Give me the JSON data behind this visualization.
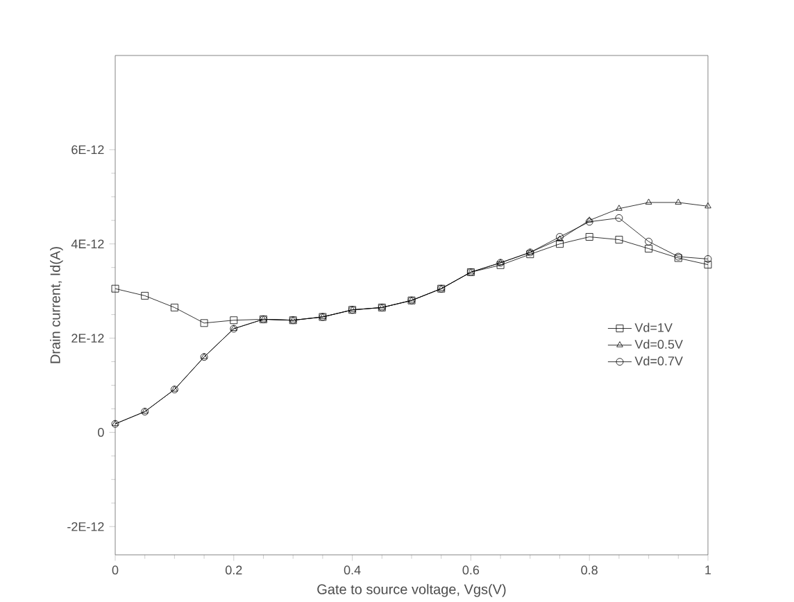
{
  "chart_data": {
    "type": "line",
    "xlabel": "Gate to source voltage, Vgs(V)",
    "ylabel": "Drain current, Id(A)",
    "x": [
      0,
      0.05,
      0.1,
      0.15,
      0.2,
      0.25,
      0.3,
      0.35,
      0.4,
      0.45,
      0.5,
      0.55,
      0.6,
      0.65,
      0.7,
      0.75,
      0.8,
      0.85,
      0.9,
      0.95,
      1.0
    ],
    "series": [
      {
        "name": "Vd=1V",
        "color": "#000000",
        "marker": "square",
        "values": [
          3.05e-12,
          2.9e-12,
          2.65e-12,
          2.32e-12,
          2.38e-12,
          2.4e-12,
          2.38e-12,
          2.45e-12,
          2.6e-12,
          2.65e-12,
          2.8e-12,
          3.05e-12,
          3.4e-12,
          3.55e-12,
          3.78e-12,
          4e-12,
          4.15e-12,
          4.09e-12,
          3.9e-12,
          3.7e-12,
          3.56e-12
        ]
      },
      {
        "name": "Vd=0.5V",
        "color": "#000000",
        "marker": "triangle",
        "values": [
          1.8e-13,
          4.4e-13,
          9.1e-13,
          1.6e-12,
          2.2e-12,
          2.4e-12,
          2.38e-12,
          2.45e-12,
          2.6e-12,
          2.65e-12,
          2.8e-12,
          3.05e-12,
          3.4e-12,
          3.6e-12,
          3.82e-12,
          4.1e-12,
          4.5e-12,
          4.75e-12,
          4.88e-12,
          4.88e-12,
          4.8e-12
        ]
      },
      {
        "name": "Vd=0.7V",
        "color": "#000000",
        "marker": "circle",
        "values": [
          1.8e-13,
          4.4e-13,
          9.1e-13,
          1.6e-12,
          2.2e-12,
          2.4e-12,
          2.38e-12,
          2.45e-12,
          2.6e-12,
          2.65e-12,
          2.8e-12,
          3.05e-12,
          3.4e-12,
          3.6e-12,
          3.82e-12,
          4.15e-12,
          4.47e-12,
          4.55e-12,
          4.05e-12,
          3.73e-12,
          3.68e-12
        ]
      }
    ],
    "xlim": [
      0,
      1
    ],
    "xticks": [
      0,
      0.2,
      0.4,
      0.6,
      0.8,
      1
    ],
    "ylim": [
      -2.6e-12,
      8e-12
    ],
    "yticks": [
      {
        "value": -2e-12,
        "label": "-2E-12"
      },
      0,
      {
        "value": 2e-12,
        "label": "2E-12"
      },
      {
        "value": 4e-12,
        "label": "4E-12"
      },
      {
        "value": 6e-12,
        "label": "6E-12"
      }
    ],
    "grid": false,
    "legend": "right",
    "line_style": "solid"
  }
}
